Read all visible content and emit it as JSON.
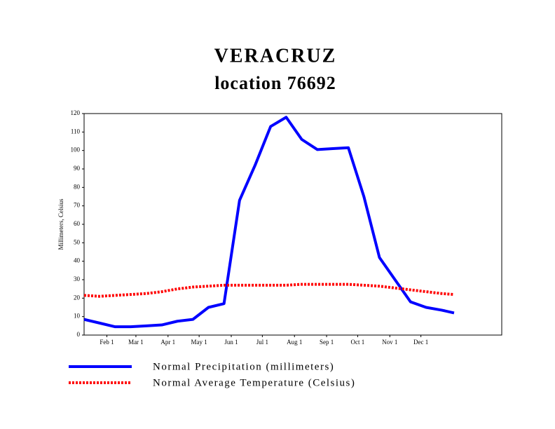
{
  "chart_data": {
    "type": "line",
    "title": "VERACRUZ",
    "subtitle": "location 76692",
    "y_label": "Millimeters, Celsius",
    "x": [
      10,
      25,
      40,
      55,
      70,
      85,
      100,
      115,
      130,
      145,
      160,
      175,
      190,
      205,
      220,
      235,
      250,
      265,
      280,
      295,
      310,
      325,
      340,
      355,
      367
    ],
    "series": [
      {
        "name": "Normal Precipitation (millimeters)",
        "color": "#0000ff",
        "dash": false,
        "values": [
          8.5,
          6.5,
          4.5,
          4.5,
          5,
          5.5,
          7.5,
          8.5,
          15,
          17,
          73,
          92,
          113,
          118,
          106,
          100.5,
          101,
          101.5,
          75,
          42,
          30,
          18,
          15,
          13.5,
          12
        ]
      },
      {
        "name": "Normal Average Temperature (Celsius)",
        "color": "#ff0000",
        "dash": true,
        "values": [
          21.5,
          21,
          21.5,
          22,
          22.5,
          23.5,
          25,
          26,
          26.5,
          27,
          27,
          27,
          27,
          27,
          27.5,
          27.5,
          27.5,
          27.5,
          27,
          26.5,
          25.5,
          24.5,
          23.5,
          22.5,
          22
        ]
      }
    ],
    "xlim": [
      10,
      413
    ],
    "xticks": [
      {
        "value": 32,
        "label": "Feb 1"
      },
      {
        "value": 60,
        "label": "Mar 1"
      },
      {
        "value": 91,
        "label": "Apr 1"
      },
      {
        "value": 121,
        "label": "May 1"
      },
      {
        "value": 152,
        "label": "Jun 1"
      },
      {
        "value": 182,
        "label": "Jul 1"
      },
      {
        "value": 213,
        "label": "Aug 1"
      },
      {
        "value": 244,
        "label": "Sep 1"
      },
      {
        "value": 274,
        "label": "Oct 1"
      },
      {
        "value": 305,
        "label": "Nov 1"
      },
      {
        "value": 335,
        "label": "Dec 1"
      }
    ],
    "ylim": [
      0,
      120
    ],
    "yticks": [
      0,
      10,
      20,
      30,
      40,
      50,
      60,
      70,
      80,
      90,
      100,
      110,
      120
    ]
  }
}
